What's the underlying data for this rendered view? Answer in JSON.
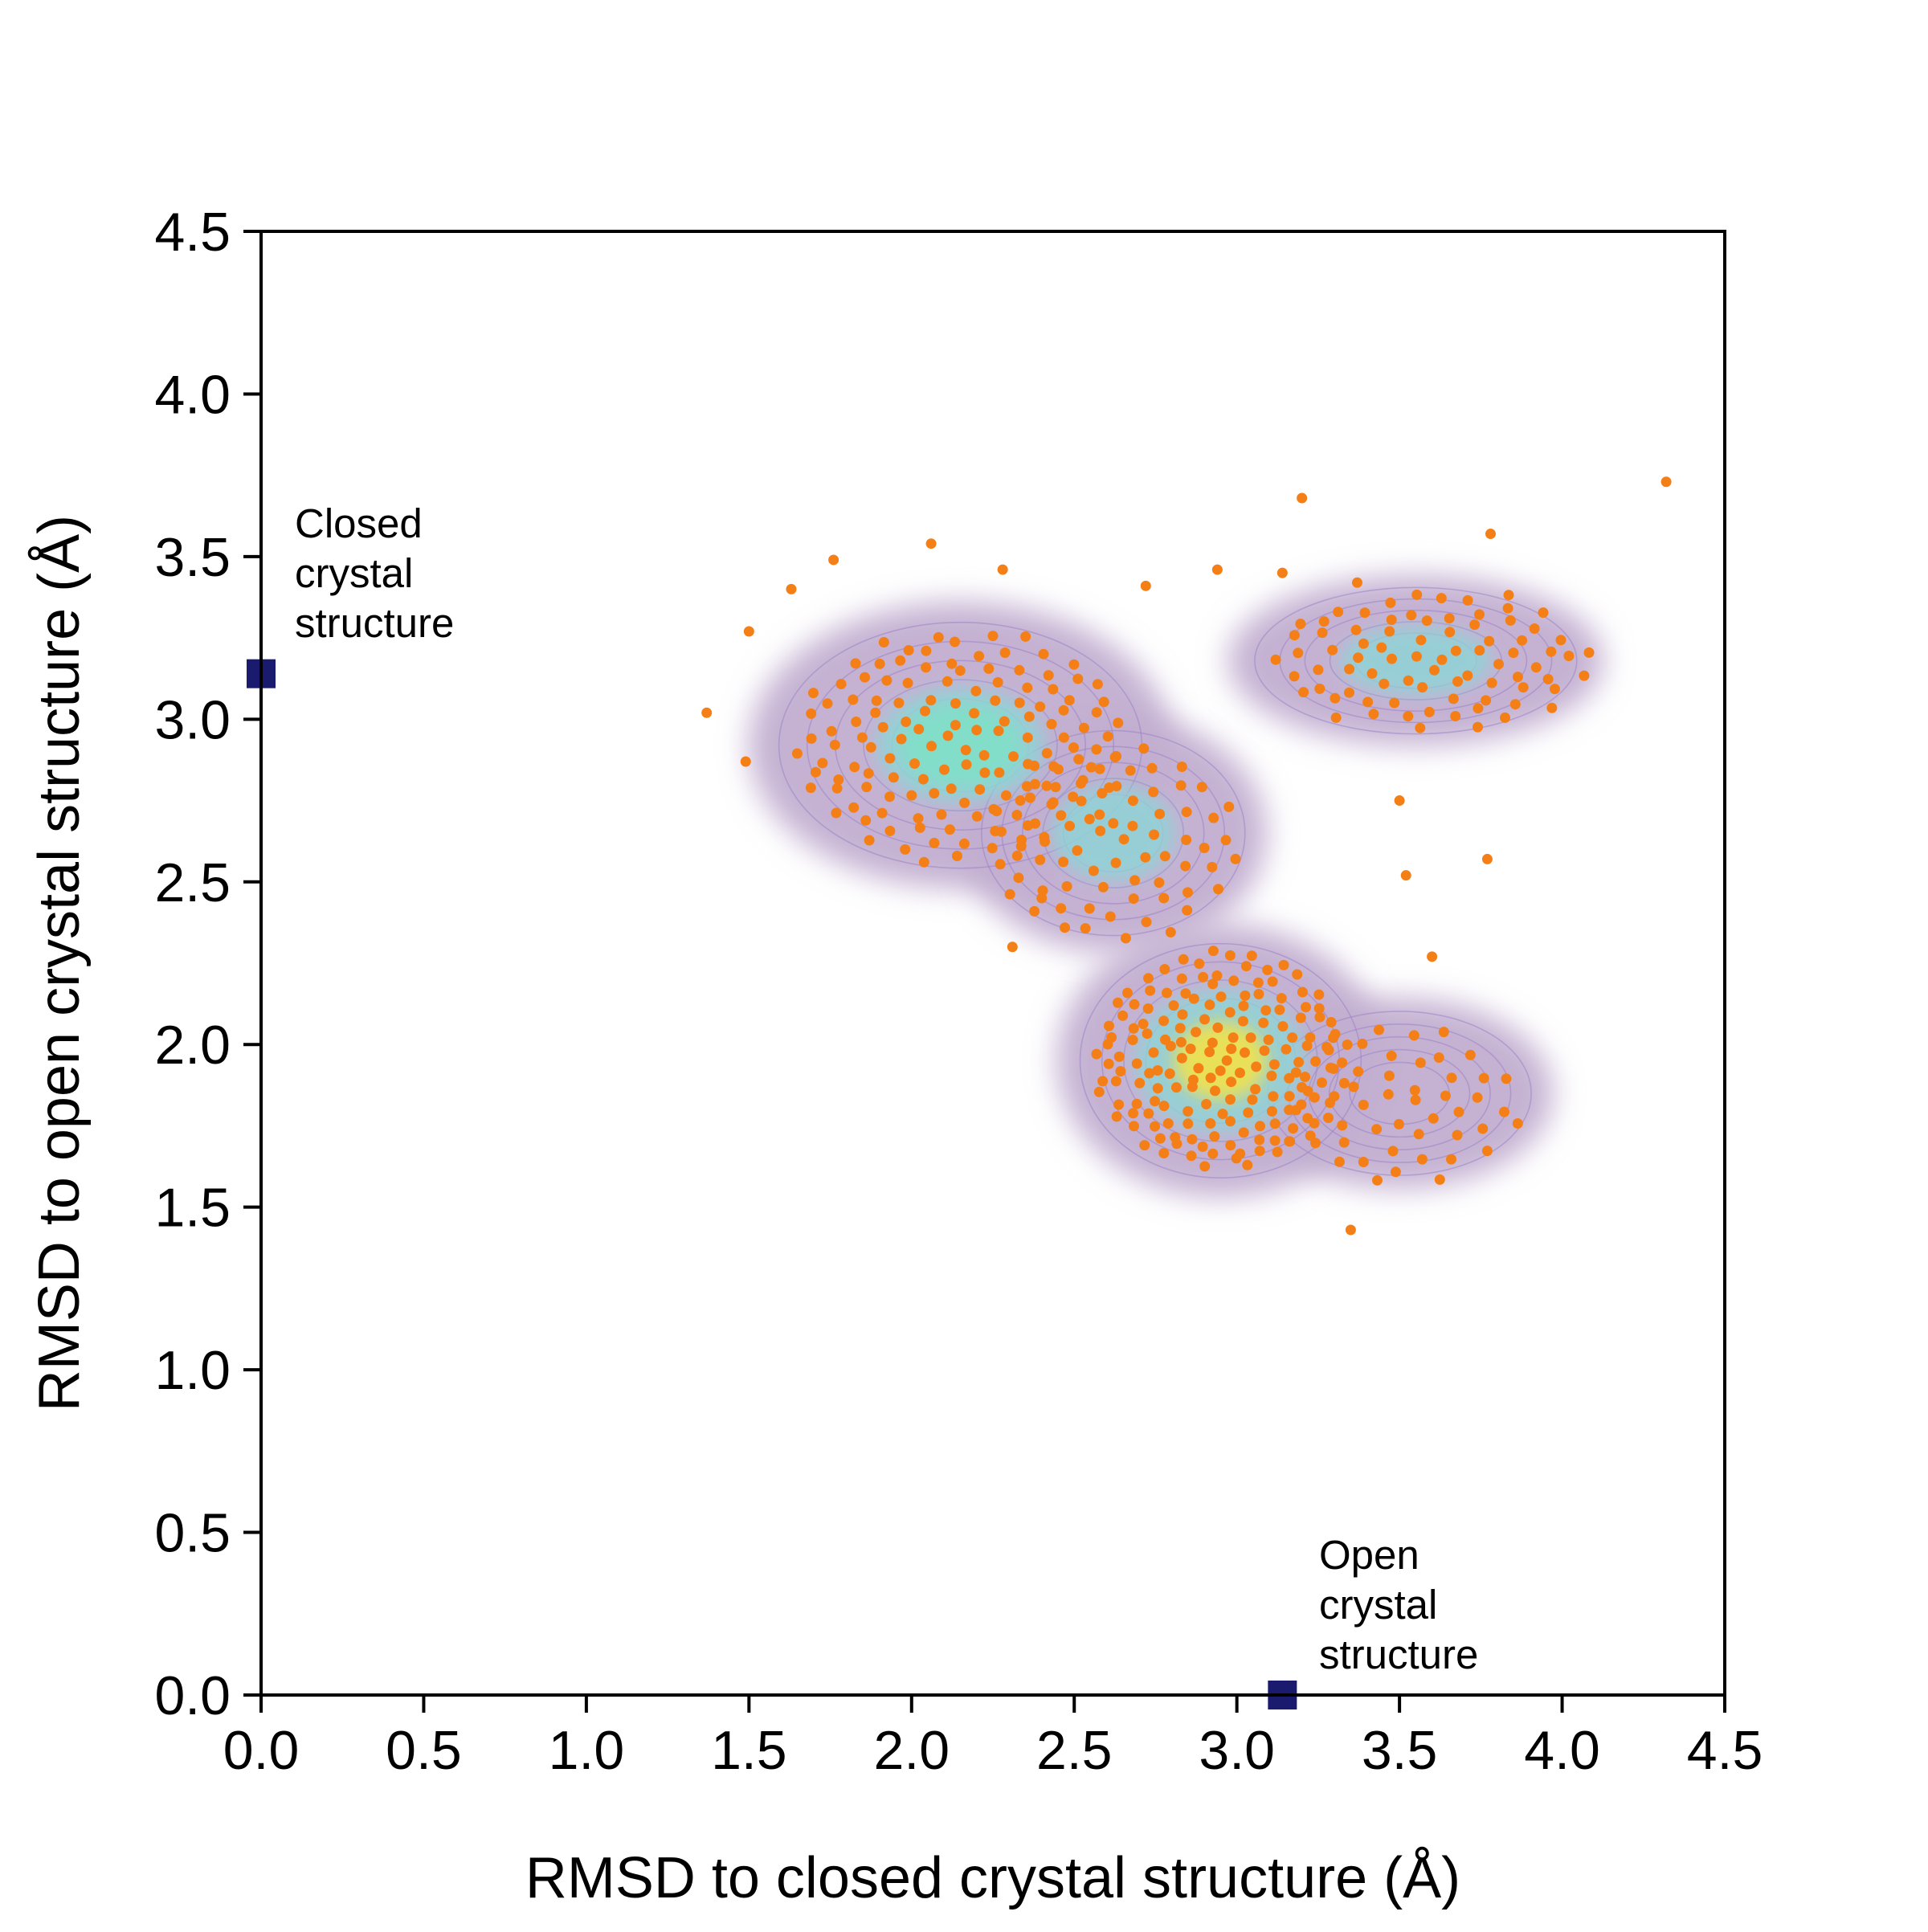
{
  "chart_data": {
    "type": "scatter",
    "title": "",
    "xlabel": "RMSD to closed crystal structure (Å)",
    "ylabel": "RMSD to open crystal structure (Å)",
    "xlim": [
      0.0,
      4.5
    ],
    "ylim": [
      0.0,
      4.5
    ],
    "xticks": [
      "0.0",
      "0.5",
      "1.0",
      "1.5",
      "2.0",
      "2.5",
      "3.0",
      "3.5",
      "4.0",
      "4.5"
    ],
    "yticks": [
      "0.0",
      "0.5",
      "1.0",
      "1.5",
      "2.0",
      "2.5",
      "3.0",
      "3.5",
      "4.0",
      "4.5"
    ],
    "grid": false,
    "colors": {
      "density_low": "#c2aed0",
      "density_contour": "#9a84c4",
      "density_mid": "#8fd3d6",
      "density_high": "#7fe0c8",
      "density_peak": "#f2e24a",
      "centers": "#f57f17",
      "crystal_marker": "#1a1a6e"
    },
    "density_regions": [
      {
        "x": 2.15,
        "y": 2.92,
        "rx": 0.62,
        "ry": 0.42,
        "level": "high"
      },
      {
        "x": 2.95,
        "y": 1.95,
        "rx": 0.48,
        "ry": 0.4,
        "level": "peak"
      },
      {
        "x": 2.62,
        "y": 2.65,
        "rx": 0.45,
        "ry": 0.35,
        "level": "mid"
      },
      {
        "x": 3.55,
        "y": 3.18,
        "rx": 0.55,
        "ry": 0.25,
        "level": "mid"
      },
      {
        "x": 3.5,
        "y": 1.85,
        "rx": 0.45,
        "ry": 0.28,
        "level": "low"
      }
    ],
    "cluster_center_groups": [
      {
        "cx": 2.15,
        "cy": 2.92,
        "rx": 0.52,
        "ry": 0.36,
        "count": 140
      },
      {
        "cx": 2.95,
        "cy": 1.95,
        "rx": 0.4,
        "ry": 0.34,
        "count": 170
      },
      {
        "cx": 2.62,
        "cy": 2.62,
        "rx": 0.4,
        "ry": 0.32,
        "count": 70
      },
      {
        "cx": 3.6,
        "cy": 3.18,
        "rx": 0.5,
        "ry": 0.22,
        "count": 80
      },
      {
        "cx": 3.5,
        "cy": 1.82,
        "rx": 0.38,
        "ry": 0.25,
        "count": 50
      }
    ],
    "outlier_centers": [
      [
        1.37,
        3.02
      ],
      [
        1.49,
        2.87
      ],
      [
        1.5,
        3.27
      ],
      [
        1.63,
        3.4
      ],
      [
        1.76,
        3.49
      ],
      [
        2.06,
        3.54
      ],
      [
        2.28,
        3.46
      ],
      [
        2.72,
        3.41
      ],
      [
        2.94,
        3.46
      ],
      [
        3.2,
        3.68
      ],
      [
        3.14,
        3.45
      ],
      [
        3.37,
        3.42
      ],
      [
        4.32,
        3.73
      ],
      [
        3.78,
        3.57
      ],
      [
        3.5,
        2.75
      ],
      [
        3.52,
        2.52
      ],
      [
        3.77,
        2.57
      ],
      [
        3.6,
        2.27
      ],
      [
        3.35,
        1.43
      ],
      [
        2.4,
        2.45
      ],
      [
        2.31,
        2.3
      ],
      [
        2.62,
        2.68
      ]
    ],
    "crystal_structures": [
      {
        "label": "Closed crystal structure",
        "lines": [
          "Closed",
          "crystal",
          "structure"
        ],
        "x": 0.0,
        "y": 3.14
      },
      {
        "label": "Open crystal structure",
        "lines": [
          "Open",
          "crystal",
          "structure"
        ],
        "x": 3.14,
        "y": 0.0
      }
    ]
  }
}
